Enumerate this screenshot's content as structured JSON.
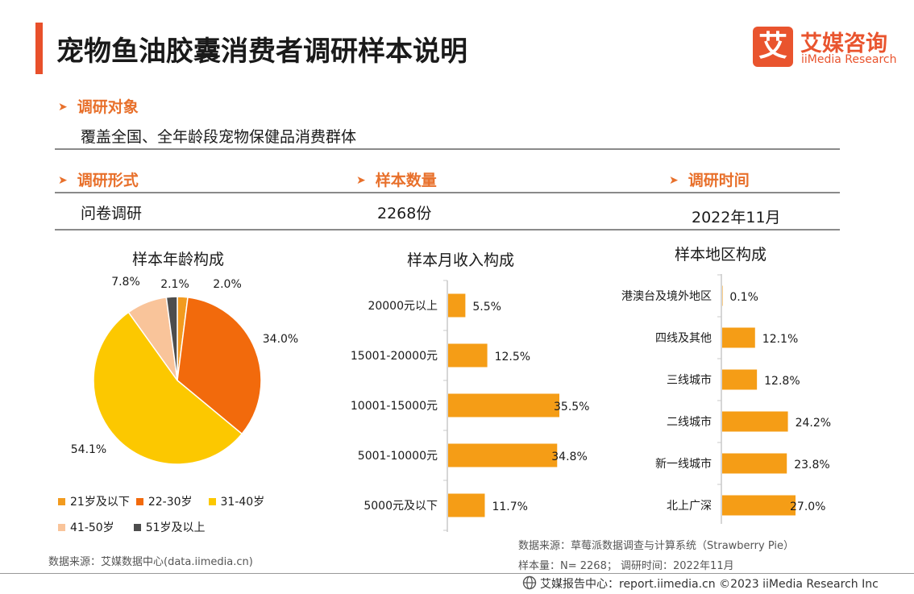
{
  "header": {
    "title": "宠物鱼油胶囊消费者调研样本说明",
    "logo_glyph": "艾",
    "logo_cn": "艾媒咨询",
    "logo_en": "iiMedia Research"
  },
  "survey": {
    "target": {
      "label": "调研对象",
      "value": "覆盖全国、全年龄段宠物保健品消费群体"
    },
    "form": {
      "label": "调研形式",
      "value": "问卷调研"
    },
    "sample_size": {
      "label": "样本数量",
      "value": "2268份"
    },
    "time": {
      "label": "调研时间",
      "value": "2022年11月"
    }
  },
  "chart_data": [
    {
      "type": "pie",
      "title": "样本年龄构成",
      "categories": [
        "21岁及以下",
        "22-30岁",
        "31-40岁",
        "41-50岁",
        "51岁及以上"
      ],
      "values": [
        2.0,
        34.0,
        54.1,
        7.8,
        2.1
      ],
      "value_labels": [
        "2.0%",
        "34.0%",
        "54.1%",
        "7.8%",
        "2.1%"
      ],
      "colors": [
        "#f29b1f",
        "#f26a0c",
        "#fcc800",
        "#f9c49a",
        "#4d4d4d"
      ],
      "legend": "bottom"
    },
    {
      "type": "bar",
      "orientation": "horizontal",
      "title": "样本月收入构成",
      "categories": [
        "20000元以上",
        "15001-20000元",
        "10001-15000元",
        "5001-10000元",
        "5000元及以下"
      ],
      "values": [
        5.5,
        12.5,
        35.5,
        34.8,
        11.7
      ],
      "value_labels": [
        "5.5%",
        "12.5%",
        "35.5%",
        "34.8%",
        "11.7%"
      ],
      "color": "#f59d16",
      "xlim": [
        0,
        35.5
      ]
    },
    {
      "type": "bar",
      "orientation": "horizontal",
      "title": "样本地区构成",
      "categories": [
        "港澳台及境外地区",
        "四线及其他",
        "三线城市",
        "二线城市",
        "新一线城市",
        "北上广深"
      ],
      "values": [
        0.1,
        12.1,
        12.8,
        24.2,
        23.8,
        27.0
      ],
      "value_labels": [
        "0.1%",
        "12.1%",
        "12.8%",
        "24.2%",
        "23.8%",
        "27.0%"
      ],
      "color": "#f59d16",
      "xlim": [
        0,
        27.0
      ]
    }
  ],
  "sources": {
    "left": "数据来源：艾媒数据中心(data.iimedia.cn)",
    "right_line1": "数据来源：草莓派数据调查与计算系统（Strawberry Pie）",
    "right_line2": "样本量：N= 2268；  调研时间：2022年11月"
  },
  "footer": {
    "icon": "globe-icon",
    "text": "艾媒报告中心：report.iimedia.cn   ©2023   iiMedia Research Inc"
  }
}
